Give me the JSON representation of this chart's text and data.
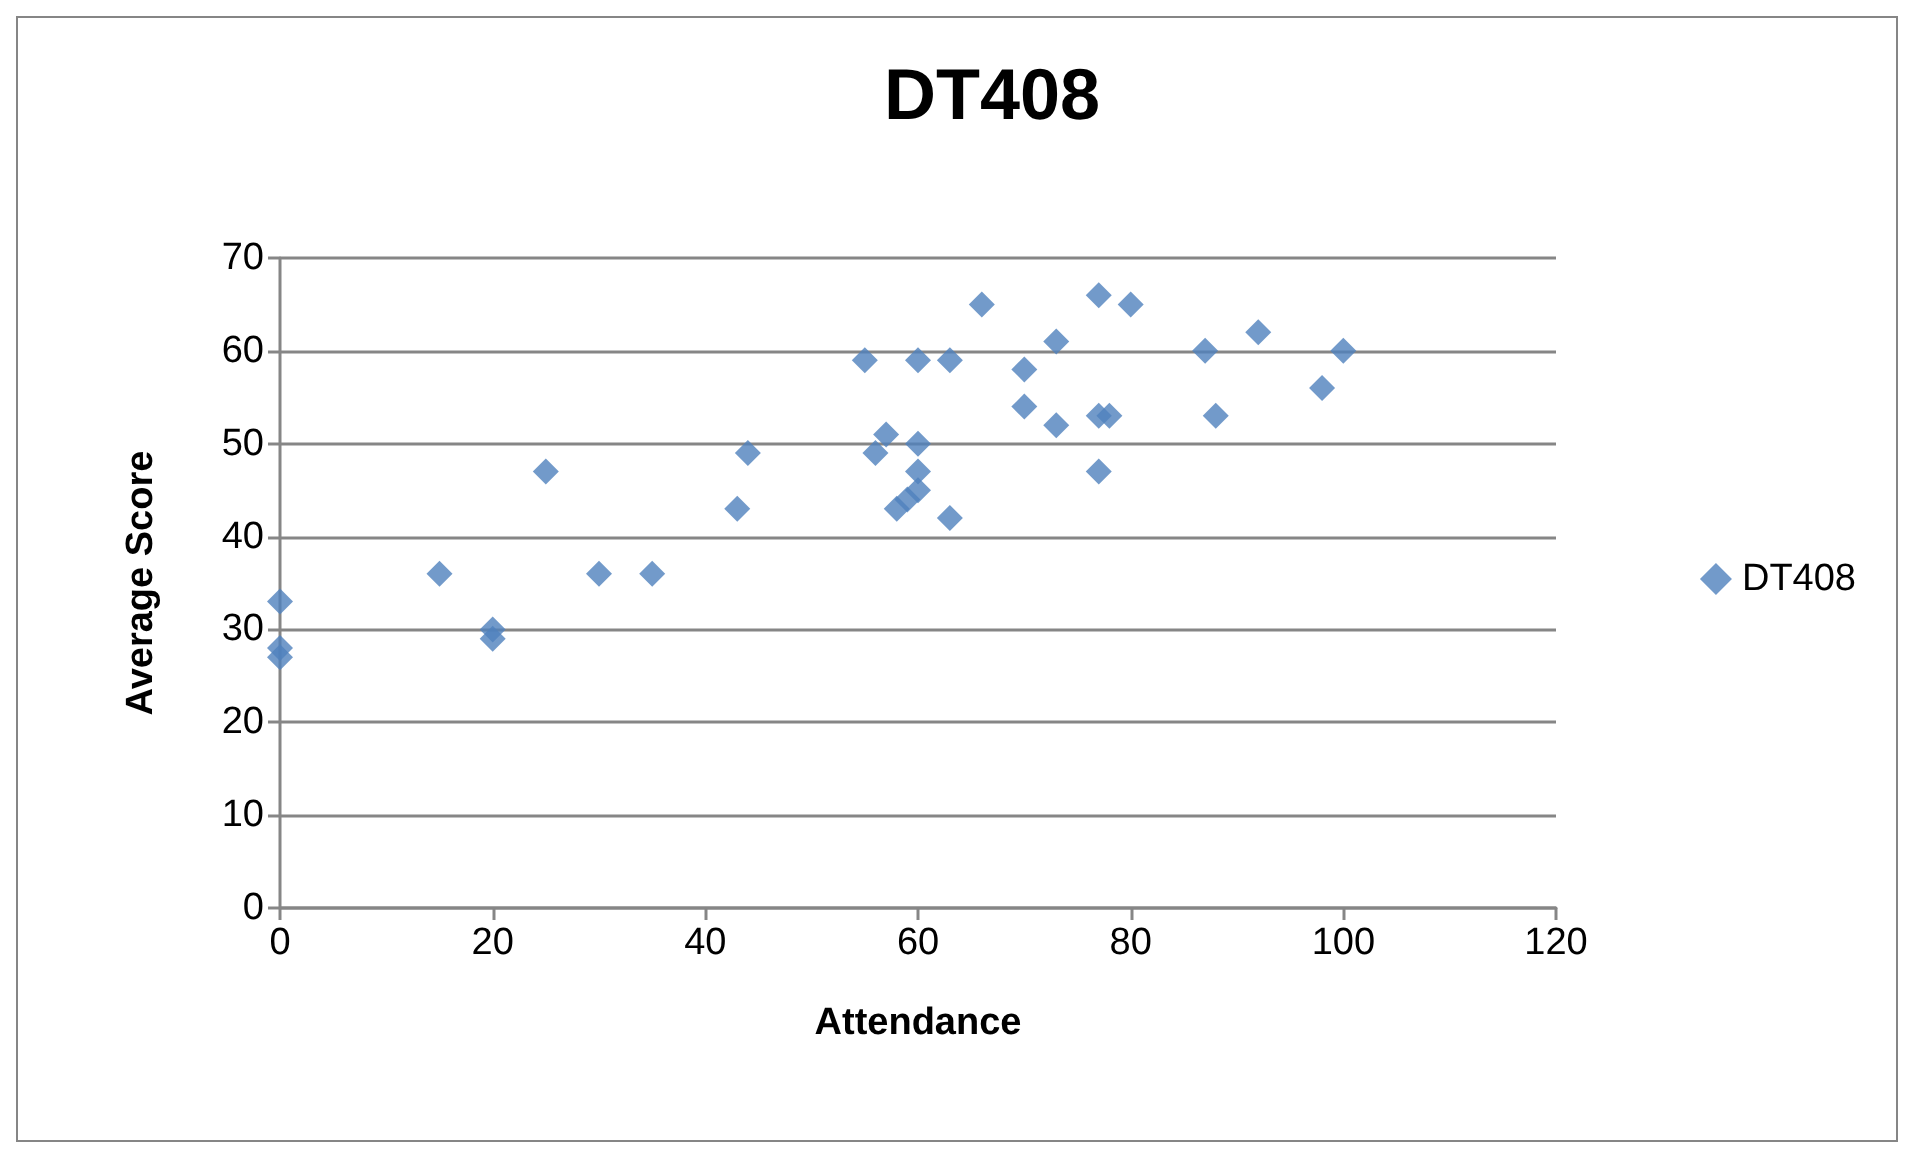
{
  "chart_data": {
    "type": "scatter",
    "title": "DT408",
    "xlabel": "Attendance",
    "ylabel": "Average Score",
    "xlim": [
      0,
      120
    ],
    "xticks": [
      0,
      20,
      40,
      60,
      80,
      100,
      120
    ],
    "ylim": [
      0,
      70
    ],
    "yticks": [
      0,
      10,
      20,
      30,
      40,
      50,
      60,
      70
    ],
    "grid": "y",
    "legend": "right",
    "marker": "diamond",
    "series": [
      {
        "name": "DT408",
        "color": "#4f81bd",
        "x": [
          0,
          0,
          0,
          15,
          20,
          20,
          25,
          30,
          35,
          43,
          44,
          55,
          56,
          57,
          58,
          59,
          60,
          60,
          60,
          60,
          63,
          63,
          66,
          70,
          70,
          73,
          73,
          77,
          78,
          77,
          77,
          80,
          87,
          88,
          92,
          98,
          100
        ],
        "values": [
          33,
          28,
          27,
          36,
          30,
          29,
          47,
          36,
          36,
          43,
          49,
          59,
          49,
          51,
          43,
          44,
          59,
          50,
          47,
          45,
          59,
          42,
          65,
          58,
          54,
          61,
          52,
          66,
          53,
          53,
          47,
          65,
          60,
          53,
          62,
          56,
          60
        ]
      }
    ]
  }
}
